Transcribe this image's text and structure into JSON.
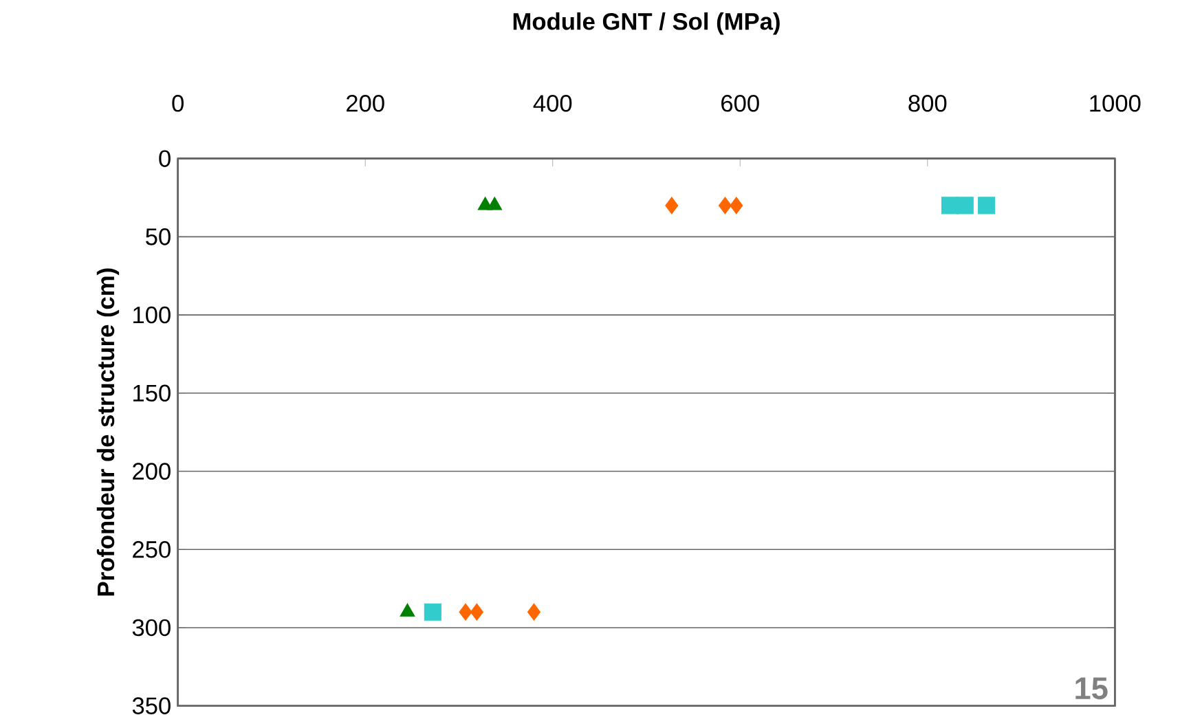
{
  "chart_data": {
    "type": "scatter",
    "xlabel": "Module GNT / Sol (MPa)",
    "ylabel": "Profondeur de structure (cm)",
    "series": [
      {
        "color": "#008000",
        "marker": "triangle",
        "x": [
          328,
          338,
          245
        ],
        "values": [
          30,
          30,
          290
        ]
      },
      {
        "color": "#ff6600",
        "marker": "diamond",
        "x": [
          527,
          584,
          596,
          307,
          319,
          380
        ],
        "values": [
          30,
          30,
          30,
          290,
          290,
          290
        ]
      },
      {
        "color": "#33cccc",
        "marker": "square",
        "x": [
          824,
          840,
          863,
          272
        ],
        "values": [
          30,
          30,
          30,
          290
        ]
      }
    ],
    "xlim": [
      0,
      1000
    ],
    "xticks": [
      0,
      200,
      400,
      600,
      800,
      1000
    ],
    "ylim": [
      350,
      0
    ],
    "yticks": [
      0,
      50,
      100,
      150,
      200,
      250,
      300,
      350
    ],
    "grid": "y",
    "annotations": [
      "15"
    ]
  }
}
